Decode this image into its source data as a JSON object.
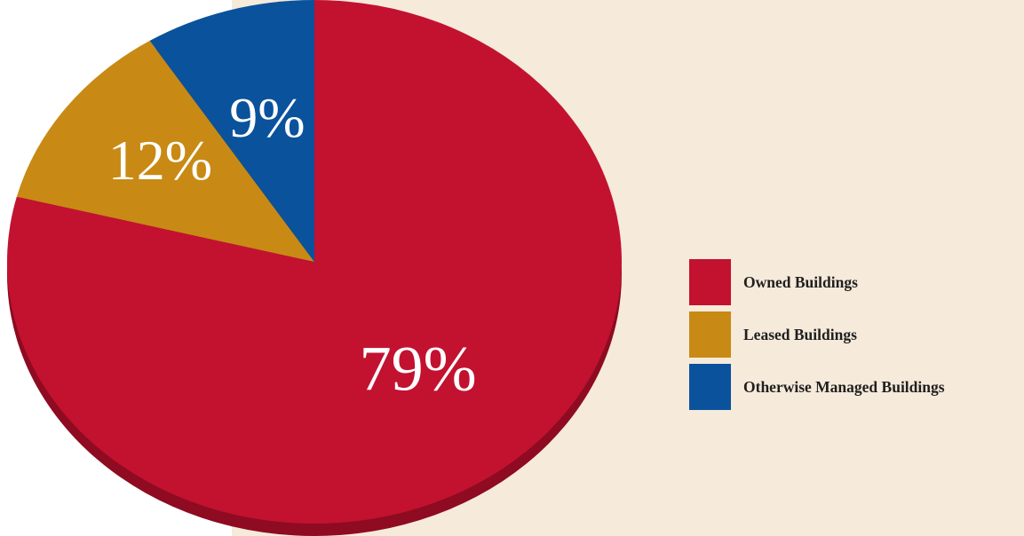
{
  "chart_data": {
    "type": "pie",
    "slices": [
      {
        "label": "Owned Buildings",
        "value": 79,
        "display": "79%",
        "color": "#c21230",
        "side_color": "#8e0b21"
      },
      {
        "label": "Leased Buildings",
        "value": 12,
        "display": "12%",
        "color": "#c88a14",
        "side_color": "#8e5f0b"
      },
      {
        "label": "Otherwise Managed Buildings",
        "value": 9,
        "display": "9%",
        "color": "#0a529c",
        "side_color": "#063a6f"
      }
    ],
    "legend_position": "right",
    "start_angle_deg": 0,
    "direction": "clockwise",
    "style": "3d"
  },
  "colors": {
    "panel_background": "#f6eadb",
    "page_background": "#ffffff"
  }
}
